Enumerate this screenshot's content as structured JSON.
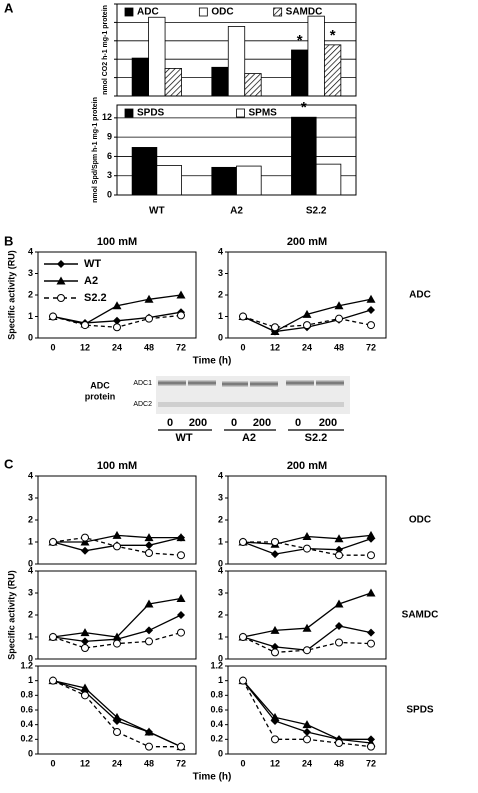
{
  "panel_labels": [
    "A",
    "B",
    "C"
  ],
  "blot": {
    "label_lines": [
      "ADC",
      "protein"
    ],
    "bands": [
      "ADC1",
      "ADC2"
    ],
    "lanes": [
      "0",
      "200",
      "0",
      "200",
      "0",
      "200"
    ],
    "groups": [
      "WT",
      "A2",
      "S2.2"
    ]
  },
  "chart_data": [
    {
      "type": "bar",
      "ylabel": "nmol CO2 h-1 mg-1 protein",
      "ylim": [
        0,
        2.5
      ],
      "yticks": [
        0,
        0.5,
        1,
        1.5,
        2,
        2.5
      ],
      "show_ytick_labels": false,
      "grid": true,
      "legend": "top",
      "series": [
        {
          "name": "ADC",
          "color": "#000000",
          "values": [
            1.03,
            0.78,
            1.25
          ],
          "significance": [
            null,
            null,
            "*"
          ]
        },
        {
          "name": "ODC",
          "color": "#ffffff",
          "values": [
            2.14,
            1.89,
            2.17
          ]
        },
        {
          "name": "SAMDC",
          "color": "#ffffff",
          "hatch": true,
          "values": [
            0.75,
            0.61,
            1.39
          ],
          "significance": [
            null,
            null,
            "*"
          ]
        }
      ]
    },
    {
      "type": "bar",
      "ylabel": "nmol Spd/Spm h-1 mg-1 protein",
      "categories": [
        "WT",
        "A2",
        "S2.2"
      ],
      "ylim": [
        0,
        14
      ],
      "yticks": [
        0,
        3,
        6,
        9,
        12
      ],
      "grid": true,
      "legend": "top",
      "series": [
        {
          "name": "SPDS",
          "color": "#000000",
          "values": [
            7.4,
            4.3,
            12.1
          ],
          "significance": [
            null,
            null,
            "*"
          ]
        },
        {
          "name": "SPMS",
          "color": "#ffffff",
          "values": [
            4.6,
            4.5,
            4.8
          ]
        }
      ]
    },
    {
      "type": "line",
      "title": "100 mM",
      "ylabel": "Specific activity (RU)",
      "xlabel": "Time (h)",
      "categories": [
        "0",
        "12",
        "24",
        "48",
        "72"
      ],
      "ylim": [
        0,
        4
      ],
      "yticks": [
        0,
        1,
        2,
        3,
        4
      ],
      "legend": "upper left",
      "series": [
        {
          "name": "WT",
          "color": "#000000",
          "marker": "diamond",
          "dashed": false,
          "values": [
            1,
            0.7,
            0.8,
            0.95,
            1.2
          ]
        },
        {
          "name": "A2",
          "color": "#000000",
          "marker": "triangle",
          "dashed": false,
          "values": [
            1,
            0.65,
            1.5,
            1.8,
            2.0
          ]
        },
        {
          "name": "S2.2",
          "color": "#000000",
          "marker": "circle-open",
          "dashed": true,
          "values": [
            1,
            0.6,
            0.5,
            0.9,
            1.05
          ]
        }
      ]
    },
    {
      "type": "line",
      "title": "200 mM",
      "row_label": "ADC",
      "categories": [
        "0",
        "12",
        "24",
        "48",
        "72"
      ],
      "ylim": [
        0,
        4
      ],
      "yticks": [
        0,
        1,
        2,
        3,
        4
      ],
      "series": [
        {
          "color": "#000000",
          "marker": "diamond",
          "dashed": false,
          "values": [
            1,
            0.3,
            0.5,
            0.85,
            1.3
          ]
        },
        {
          "color": "#000000",
          "marker": "triangle",
          "dashed": false,
          "values": [
            1,
            0.3,
            1.1,
            1.5,
            1.8
          ]
        },
        {
          "color": "#000000",
          "marker": "circle-open",
          "dashed": true,
          "values": [
            1,
            0.5,
            0.6,
            0.9,
            0.6
          ]
        }
      ]
    },
    {
      "type": "line",
      "title": "100 mM",
      "ylim": [
        0,
        4
      ],
      "yticks": [
        0,
        1,
        2,
        3,
        4
      ],
      "series": [
        {
          "color": "#000000",
          "marker": "diamond",
          "dashed": false,
          "values": [
            1,
            0.6,
            0.85,
            0.85,
            1.2
          ]
        },
        {
          "color": "#000000",
          "marker": "triangle",
          "dashed": false,
          "values": [
            1,
            1.0,
            1.3,
            1.2,
            1.2
          ]
        },
        {
          "color": "#000000",
          "marker": "circle-open",
          "dashed": true,
          "values": [
            1,
            1.2,
            0.8,
            0.5,
            0.4
          ]
        }
      ]
    },
    {
      "type": "line",
      "title": "200 mM",
      "row_label": "ODC",
      "ylim": [
        0,
        4
      ],
      "yticks": [
        0,
        1,
        2,
        3,
        4
      ],
      "series": [
        {
          "color": "#000000",
          "marker": "diamond",
          "dashed": false,
          "values": [
            1,
            0.45,
            0.7,
            0.65,
            1.15
          ]
        },
        {
          "color": "#000000",
          "marker": "triangle",
          "dashed": false,
          "values": [
            1,
            0.9,
            1.25,
            1.15,
            1.3
          ]
        },
        {
          "color": "#000000",
          "marker": "circle-open",
          "dashed": true,
          "values": [
            1,
            1.0,
            0.7,
            0.4,
            0.4
          ]
        }
      ]
    },
    {
      "type": "line",
      "ylabel": "Specific activity (RU)",
      "ylim": [
        0,
        4
      ],
      "yticks": [
        0,
        1,
        2,
        3,
        4
      ],
      "series": [
        {
          "color": "#000000",
          "marker": "diamond",
          "dashed": false,
          "values": [
            1,
            0.8,
            0.9,
            1.3,
            2.0
          ]
        },
        {
          "color": "#000000",
          "marker": "triangle",
          "dashed": false,
          "values": [
            1,
            1.2,
            1.0,
            2.5,
            2.75
          ]
        },
        {
          "color": "#000000",
          "marker": "circle-open",
          "dashed": true,
          "values": [
            1,
            0.5,
            0.7,
            0.8,
            1.2
          ]
        }
      ]
    },
    {
      "type": "line",
      "row_label": "SAMDC",
      "ylim": [
        0,
        4
      ],
      "yticks": [
        0,
        1,
        2,
        3,
        4
      ],
      "series": [
        {
          "color": "#000000",
          "marker": "diamond",
          "dashed": false,
          "values": [
            1,
            0.55,
            0.4,
            1.5,
            1.2
          ]
        },
        {
          "color": "#000000",
          "marker": "triangle",
          "dashed": false,
          "values": [
            1,
            1.3,
            1.4,
            2.5,
            3.0
          ]
        },
        {
          "color": "#000000",
          "marker": "circle-open",
          "dashed": true,
          "values": [
            1,
            0.3,
            0.4,
            0.75,
            0.7
          ]
        }
      ]
    },
    {
      "type": "line",
      "xlabel": "Time (h)",
      "categories": [
        "0",
        "12",
        "24",
        "48",
        "72"
      ],
      "ylim": [
        0,
        1.2
      ],
      "yticks": [
        0,
        0.2,
        0.4,
        0.6,
        0.8,
        1,
        1.2
      ],
      "series": [
        {
          "color": "#000000",
          "marker": "diamond",
          "dashed": false,
          "values": [
            1,
            0.85,
            0.45,
            0.3,
            0.1
          ]
        },
        {
          "color": "#000000",
          "marker": "triangle",
          "dashed": false,
          "values": [
            1,
            0.9,
            0.5,
            0.3,
            0.1
          ]
        },
        {
          "color": "#000000",
          "marker": "circle-open",
          "dashed": true,
          "values": [
            1,
            0.8,
            0.3,
            0.1,
            0.1
          ]
        }
      ]
    },
    {
      "type": "line",
      "row_label": "SPDS",
      "categories": [
        "0",
        "12",
        "24",
        "48",
        "72"
      ],
      "ylim": [
        0,
        1.2
      ],
      "yticks": [
        0,
        0.2,
        0.4,
        0.6,
        0.8,
        1,
        1.2
      ],
      "series": [
        {
          "color": "#000000",
          "marker": "diamond",
          "dashed": false,
          "values": [
            1,
            0.45,
            0.3,
            0.2,
            0.2
          ]
        },
        {
          "color": "#000000",
          "marker": "triangle",
          "dashed": false,
          "values": [
            1,
            0.5,
            0.4,
            0.2,
            0.15
          ]
        },
        {
          "color": "#000000",
          "marker": "circle-open",
          "dashed": true,
          "values": [
            1,
            0.2,
            0.2,
            0.15,
            0.1
          ]
        }
      ]
    }
  ]
}
